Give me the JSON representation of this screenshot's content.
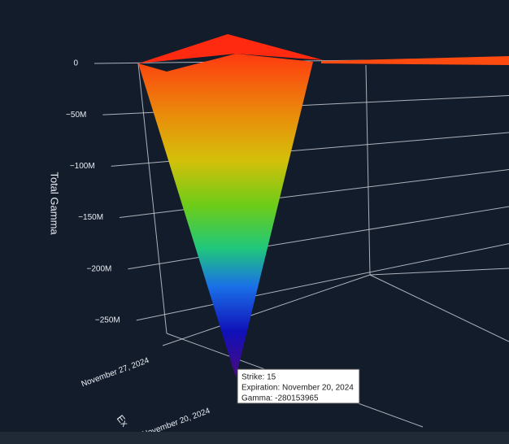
{
  "chart_data": {
    "type": "surface3d",
    "zlabel": "Total Gamma",
    "ylabel": "Ex",
    "zticks": [
      0,
      {
        "value": -50000000,
        "label": "−50M"
      },
      {
        "value": -100000000,
        "label": "−100M"
      },
      {
        "value": -150000000,
        "label": "−150M"
      },
      {
        "value": -200000000,
        "label": "−200M"
      },
      {
        "value": -250000000,
        "label": "−250M"
      }
    ],
    "zlim": [
      -280153965,
      0
    ],
    "ycategories": [
      "November 27, 2024",
      "November 20, 2024"
    ],
    "point": {
      "strike": 15,
      "expiration": "November 20, 2024",
      "gamma": -280153965
    },
    "tooltip": [
      "Strike: 15",
      "Expiration: November 20, 2024",
      "Gamma: -280153965"
    ]
  }
}
